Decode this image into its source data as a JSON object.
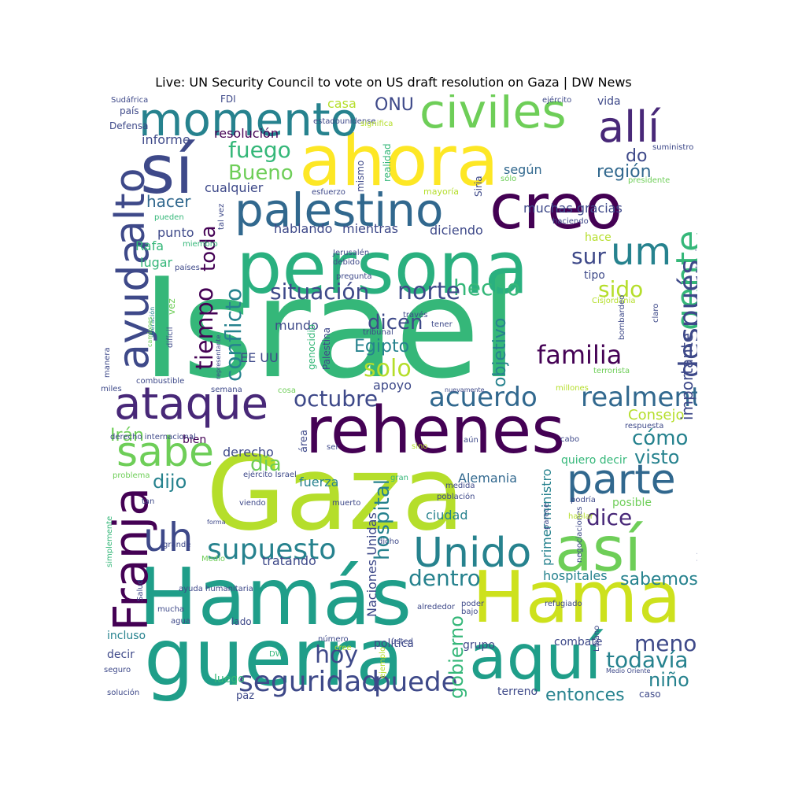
{
  "chart_data": {
    "type": "wordcloud",
    "title": "Live: UN Security Council to vote on US draft resolution on Gaza | DW News",
    "words": [
      {
        "t": "Israel",
        "c": "#35b779"
      },
      {
        "t": "Gaza",
        "c": "#b5de2b"
      },
      {
        "t": "persona",
        "c": "#2ab07f"
      },
      {
        "t": "ahora",
        "c": "#fde725"
      },
      {
        "t": "rehenes",
        "c": "#440154"
      },
      {
        "t": "Hamás",
        "c": "#1f9e89"
      },
      {
        "t": "guerra",
        "c": "#1f9e89"
      },
      {
        "t": "creo",
        "c": "#440154"
      },
      {
        "t": "sí",
        "c": "#3e4989"
      },
      {
        "t": "Hama",
        "c": "#cde11d"
      },
      {
        "t": "así",
        "c": "#6ece58"
      },
      {
        "t": "aquí",
        "c": "#1f9e89"
      },
      {
        "t": "momento",
        "c": "#26828e"
      },
      {
        "t": "civiles",
        "c": "#6ece58"
      },
      {
        "t": "allí",
        "c": "#482878"
      },
      {
        "t": "palestino",
        "c": "#31688e"
      },
      {
        "t": "Franja",
        "c": "#440154"
      },
      {
        "t": "ataque",
        "c": "#482878"
      },
      {
        "t": "parte",
        "c": "#31688e"
      },
      {
        "t": "sabe",
        "c": "#6ece58"
      },
      {
        "t": "Unido",
        "c": "#26828e"
      },
      {
        "t": "alto",
        "c": "#3e4989"
      },
      {
        "t": "ayuda",
        "c": "#3e4989"
      },
      {
        "t": "gente",
        "c": "#35b779"
      },
      {
        "t": "um",
        "c": "#26828e"
      },
      {
        "t": "uh",
        "c": "#3e4989"
      },
      {
        "t": "después",
        "c": "#3e4989"
      },
      {
        "t": "supuesto",
        "c": "#26828e"
      },
      {
        "t": "realmente",
        "c": "#31688e"
      },
      {
        "t": "acuerdo",
        "c": "#31688e"
      },
      {
        "t": "situación",
        "c": "#3e4989"
      },
      {
        "t": "octubre",
        "c": "#3e4989"
      },
      {
        "t": "familia",
        "c": "#440154"
      },
      {
        "t": "seguridad",
        "c": "#3e4989"
      },
      {
        "t": "puede",
        "c": "#3e4989"
      },
      {
        "t": "tiempo",
        "c": "#440154"
      },
      {
        "t": "hecho",
        "c": "#35b779"
      },
      {
        "t": "norte",
        "c": "#3e4989"
      },
      {
        "t": "conflicto",
        "c": "#26828e"
      },
      {
        "t": "dentro",
        "c": "#26828e"
      },
      {
        "t": "fuego",
        "c": "#35b779"
      },
      {
        "t": "Bueno",
        "c": "#6ece58"
      },
      {
        "t": "solo",
        "c": "#b5de2b"
      },
      {
        "t": "dicen",
        "c": "#3e4989"
      },
      {
        "t": "toda",
        "c": "#440154"
      },
      {
        "t": "sur",
        "c": "#3e4989"
      },
      {
        "t": "sido",
        "c": "#b5de2b"
      },
      {
        "t": "dice",
        "c": "#482878"
      },
      {
        "t": "hoy",
        "c": "#3e4989"
      },
      {
        "t": "menos",
        "c": "#3e4989"
      },
      {
        "t": "todavía",
        "c": "#26828e"
      },
      {
        "t": "niño",
        "c": "#26828e"
      },
      {
        "t": "entonces",
        "c": "#26828e"
      },
      {
        "t": "cómo",
        "c": "#26828e"
      },
      {
        "t": "visto",
        "c": "#26828e"
      },
      {
        "t": "Irán",
        "c": "#6ece58"
      },
      {
        "t": "día",
        "c": "#6ece58"
      },
      {
        "t": "dijo",
        "c": "#26828e"
      },
      {
        "t": "Egipto",
        "c": "#26828e"
      },
      {
        "t": "hospital",
        "c": "#26828e"
      },
      {
        "t": "gobierno",
        "c": "#35b779"
      },
      {
        "t": "Consejo",
        "c": "#b5de2b"
      },
      {
        "t": "importante",
        "c": "#3e4989"
      },
      {
        "t": "ONU",
        "c": "#3e4989"
      },
      {
        "t": "región",
        "c": "#31688e"
      },
      {
        "t": "do",
        "c": "#3e4989"
      },
      {
        "t": "sabemos",
        "c": "#26828e"
      },
      {
        "t": "hacer",
        "c": "#31688e"
      },
      {
        "t": "objetivo",
        "c": "#26828e"
      },
      {
        "t": "Alemania",
        "c": "#31688e"
      },
      {
        "t": "hospitales",
        "c": "#26828e"
      },
      {
        "t": "primer ministro",
        "c": "#26828e"
      },
      {
        "t": "tratando",
        "c": "#3e4989"
      },
      {
        "t": "ciudad",
        "c": "#26828e"
      },
      {
        "t": "fuerza",
        "c": "#26828e"
      },
      {
        "t": "derecho",
        "c": "#3e4989"
      },
      {
        "t": "apoyo",
        "c": "#3e4989"
      },
      {
        "t": "EE UU",
        "c": "#3e4989"
      },
      {
        "t": "mundo",
        "c": "#3e4989"
      },
      {
        "t": "hablando",
        "c": "#3e4989"
      },
      {
        "t": "mientras",
        "c": "#3e4989"
      },
      {
        "t": "diciendo",
        "c": "#3e4989"
      },
      {
        "t": "cualquier",
        "c": "#3e4989"
      },
      {
        "t": "Rafa",
        "c": "#35b779"
      },
      {
        "t": "lugar",
        "c": "#35b779"
      },
      {
        "t": "punto",
        "c": "#3e4989"
      },
      {
        "t": "informe",
        "c": "#3e4989"
      },
      {
        "t": "resolución",
        "c": "#440154"
      },
      {
        "t": "según",
        "c": "#31688e"
      },
      {
        "t": "casa",
        "c": "#b5de2b"
      },
      {
        "t": "vida",
        "c": "#3e4989"
      },
      {
        "t": "muchas gracias",
        "c": "#3e4989"
      },
      {
        "t": "hace",
        "c": "#b5de2b"
      },
      {
        "t": "tipo",
        "c": "#3e4989"
      },
      {
        "t": "combate",
        "c": "#3e4989"
      },
      {
        "t": "grupo",
        "c": "#3e4989"
      },
      {
        "t": "incluso",
        "c": "#26828e"
      },
      {
        "t": "decir",
        "c": "#3e4989"
      },
      {
        "t": "luego",
        "c": "#35b779"
      },
      {
        "t": "paz",
        "c": "#3e4989"
      },
      {
        "t": "terreno",
        "c": "#3e4989"
      },
      {
        "t": "caso",
        "c": "#3e4989"
      },
      {
        "t": "política",
        "c": "#3e4989"
      },
      {
        "t": "lado",
        "c": "#3e4989"
      },
      {
        "t": "Naciones Unidas",
        "c": "#3e4989"
      },
      {
        "t": "quiero decir",
        "c": "#35b779"
      },
      {
        "t": "posible",
        "c": "#6ece58"
      },
      {
        "t": "frontera",
        "c": "#3e4989"
      },
      {
        "t": "bien",
        "c": "#440154"
      },
      {
        "t": "área",
        "c": "#3e4989"
      },
      {
        "t": "cosa",
        "c": "#6ece58"
      },
      {
        "t": "Palestina",
        "c": "#3e4989"
      },
      {
        "t": "genocidio",
        "c": "#35b779"
      },
      {
        "t": "Defensa",
        "c": "#3e4989"
      },
      {
        "t": "país",
        "c": "#3e4989"
      },
      {
        "t": "FDI",
        "c": "#3e4989"
      },
      {
        "t": "Sudáfrica",
        "c": "#3e4989"
      },
      {
        "t": "estadounidense",
        "c": "#3e4989"
      },
      {
        "t": "significa",
        "c": "#b5de2b"
      },
      {
        "t": "ejército",
        "c": "#3e4989"
      },
      {
        "t": "suministro",
        "c": "#3e4989"
      },
      {
        "t": "presidente",
        "c": "#6ece58"
      },
      {
        "t": "mayoría",
        "c": "#b5de2b"
      },
      {
        "t": "esfuerzo",
        "c": "#3e4989"
      },
      {
        "t": "tal vez",
        "c": "#3e4989"
      },
      {
        "t": "pueden",
        "c": "#35b779"
      },
      {
        "t": "haciendo",
        "c": "#3e4989"
      },
      {
        "t": "hacia",
        "c": "#3e4989"
      },
      {
        "t": "miembro",
        "c": "#35b779"
      },
      {
        "t": "países",
        "c": "#3e4989"
      },
      {
        "t": "Jerusalén",
        "c": "#3e4989"
      },
      {
        "t": "debido",
        "c": "#3e4989"
      },
      {
        "t": "pregunta",
        "c": "#3e4989"
      },
      {
        "t": "mismo",
        "c": "#3e4989"
      },
      {
        "t": "realidad",
        "c": "#35b779"
      },
      {
        "t": "sólo",
        "c": "#6ece58"
      },
      {
        "t": "Siria",
        "c": "#3e4989"
      },
      {
        "t": "Cisjordania",
        "c": "#b5de2b"
      },
      {
        "t": "claro",
        "c": "#3e4989"
      },
      {
        "t": "bombardeo",
        "c": "#3e4989"
      },
      {
        "t": "través",
        "c": "#3e4989"
      },
      {
        "t": "tener",
        "c": "#3e4989"
      },
      {
        "t": "tribunal",
        "c": "#3e4989"
      },
      {
        "t": "terrorista",
        "c": "#6ece58"
      },
      {
        "t": "millones",
        "c": "#b5de2b"
      },
      {
        "t": "semana",
        "c": "#3e4989"
      },
      {
        "t": "combustible",
        "c": "#3e4989"
      },
      {
        "t": "miles",
        "c": "#3e4989"
      },
      {
        "t": "manera",
        "c": "#3e4989"
      },
      {
        "t": "liberación",
        "c": "#26828e"
      },
      {
        "t": "camiones",
        "c": "#6ece58"
      },
      {
        "t": "vez",
        "c": "#6ece58"
      },
      {
        "t": "difícil",
        "c": "#3e4989"
      },
      {
        "t": "representante",
        "c": "#3e4989"
      },
      {
        "t": "simplemente",
        "c": "#35b779"
      },
      {
        "t": "derecho internacional",
        "c": "#3e4989"
      },
      {
        "t": "problema",
        "c": "#6ece58"
      },
      {
        "t": "tan",
        "c": "#3e4989"
      },
      {
        "t": "ejército Israel",
        "c": "#3e4989"
      },
      {
        "t": "viendo",
        "c": "#3e4989"
      },
      {
        "t": "forma",
        "c": "#3e4989"
      },
      {
        "t": "grande",
        "c": "#3e4989"
      },
      {
        "t": "Medio",
        "c": "#6ece58"
      },
      {
        "t": "Salud",
        "c": "#3e4989"
      },
      {
        "t": "ayuda humanitaria",
        "c": "#3e4989"
      },
      {
        "t": "mucha",
        "c": "#3e4989"
      },
      {
        "t": "agua",
        "c": "#3e4989"
      },
      {
        "t": "número",
        "c": "#3e4989"
      },
      {
        "t": "cree",
        "c": "#b5de2b"
      },
      {
        "t": "DW",
        "c": "#35b779"
      },
      {
        "t": "seguro",
        "c": "#3e4989"
      },
      {
        "t": "solución",
        "c": "#3e4989"
      },
      {
        "t": "ejemplo",
        "c": "#b5de2b"
      },
      {
        "t": "usted",
        "c": "#3e4989"
      },
      {
        "t": "alrededor",
        "c": "#3e4989"
      },
      {
        "t": "bajo",
        "c": "#3e4989"
      },
      {
        "t": "poder",
        "c": "#3e4989"
      },
      {
        "t": "Líbano",
        "c": "#3e4989"
      },
      {
        "t": "Medio Oriente",
        "c": "#3e4989"
      },
      {
        "t": "negociaciones",
        "c": "#3e4989"
      },
      {
        "t": "siempre",
        "c": "#6ece58"
      },
      {
        "t": "palabra",
        "c": "#3e4989"
      },
      {
        "t": "refugiado",
        "c": "#3e4989"
      },
      {
        "t": "hablar",
        "c": "#b5de2b"
      },
      {
        "t": "podría",
        "c": "#3e4989"
      },
      {
        "t": "parece",
        "c": "#3e4989"
      },
      {
        "t": "población",
        "c": "#3e4989"
      },
      {
        "t": "medida",
        "c": "#3e4989"
      },
      {
        "t": "muerto",
        "c": "#3e4989"
      },
      {
        "t": "gran",
        "c": "#35b779"
      },
      {
        "t": "dicho",
        "c": "#3e4989"
      },
      {
        "t": "sino",
        "c": "#b5de2b"
      },
      {
        "t": "ser",
        "c": "#3e4989"
      },
      {
        "t": "aún",
        "c": "#3e4989"
      },
      {
        "t": "cabo",
        "c": "#3e4989"
      },
      {
        "t": "respuesta",
        "c": "#3e4989"
      },
      {
        "t": "nuevamente",
        "c": "#3e4989"
      },
      {
        "t": "ver",
        "c": "#3e4989"
      }
    ]
  }
}
